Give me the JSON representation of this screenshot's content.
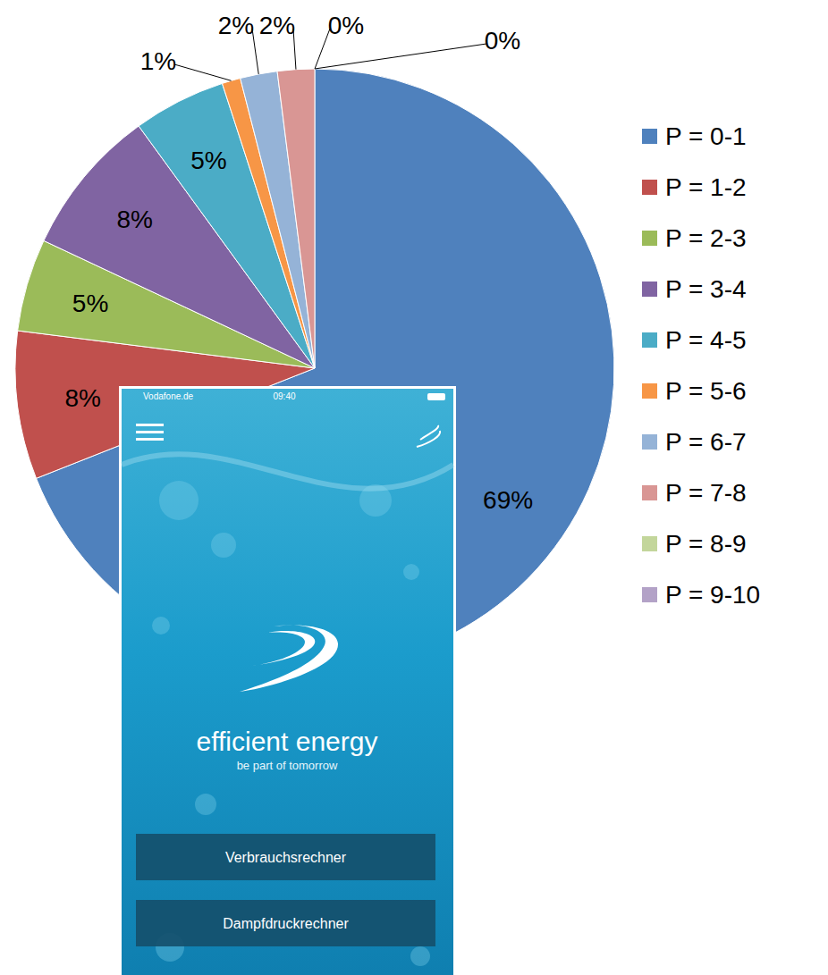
{
  "chart_data": {
    "type": "pie",
    "categories": [
      "P = 0-1",
      "P = 1-2",
      "P = 2-3",
      "P = 3-4",
      "P = 4-5",
      "P = 5-6",
      "P = 6-7",
      "P = 7-8",
      "P = 8-9",
      "P = 9-10"
    ],
    "values": [
      69,
      8,
      5,
      8,
      5,
      1,
      2,
      2,
      0,
      0
    ],
    "value_labels": [
      "69%",
      "8%",
      "5%",
      "8%",
      "5%",
      "1%",
      "2%",
      "2%",
      "0%",
      "0%"
    ],
    "colors": [
      "#4f81bd",
      "#c0504d",
      "#9bbb59",
      "#8064a2",
      "#4bacc6",
      "#f79646",
      "#95b3d7",
      "#d99694",
      "#c3d69b",
      "#b3a2c7"
    ],
    "data_labels": true,
    "legend": "right"
  },
  "overlay": {
    "status_bar": {
      "carrier": "Vodafone.de",
      "time": "09:40"
    },
    "brand": "efficient energy",
    "tagline": "be part of tomorrow",
    "buttons": [
      "Verbrauchsrechner",
      "Dampfdruckrechner"
    ]
  }
}
